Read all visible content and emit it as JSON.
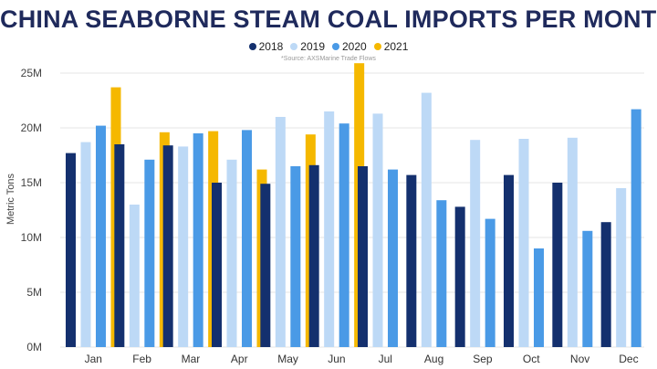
{
  "chart_data": {
    "type": "bar",
    "title": "CHINA SEABORNE STEAM COAL IMPORTS PER MONTH",
    "source_note": "*Source: AXSMarine Trade Flows",
    "ylabel": "Metric Tons",
    "xlabel": "",
    "ylim": [
      0,
      25
    ],
    "yticks": [
      0,
      5,
      10,
      15,
      20,
      25
    ],
    "ytick_labels": [
      "0M",
      "5M",
      "10M",
      "15M",
      "20M",
      "25M"
    ],
    "categories": [
      "Jan",
      "Feb",
      "Mar",
      "Apr",
      "May",
      "Jun",
      "Jul",
      "Aug",
      "Sep",
      "Oct",
      "Nov",
      "Dec"
    ],
    "grid": true,
    "legend_position": "top-center",
    "series": [
      {
        "name": "2018",
        "color": "#14306e",
        "values": [
          17.7,
          18.5,
          18.4,
          15.0,
          14.9,
          16.6,
          16.5,
          15.7,
          12.8,
          15.7,
          15.0,
          11.4
        ]
      },
      {
        "name": "2019",
        "color": "#bdd9f6",
        "values": [
          18.7,
          13.0,
          18.3,
          17.1,
          21.0,
          21.5,
          21.3,
          23.2,
          18.9,
          19.0,
          19.1,
          14.5
        ]
      },
      {
        "name": "2020",
        "color": "#4a9ae6",
        "values": [
          20.2,
          17.1,
          19.5,
          19.8,
          16.5,
          20.4,
          16.2,
          13.4,
          11.7,
          9.0,
          10.6,
          21.7
        ]
      },
      {
        "name": "2021",
        "color": "#f5b800",
        "values": [
          23.7,
          19.6,
          19.7,
          16.2,
          19.4,
          25.9,
          null,
          null,
          null,
          null,
          null,
          null
        ]
      }
    ]
  }
}
